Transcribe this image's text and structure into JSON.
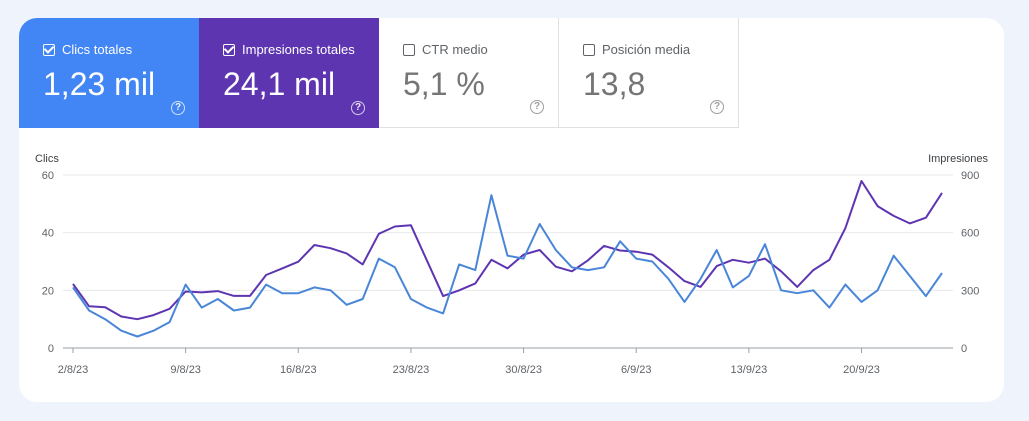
{
  "metrics": [
    {
      "label": "Clics totales",
      "value": "1,23 mil",
      "checked": true,
      "color": "#4285f4"
    },
    {
      "label": "Impresiones totales",
      "value": "24,1 mil",
      "checked": true,
      "color": "#5e35b1"
    },
    {
      "label": "CTR medio",
      "value": "5,1 %",
      "checked": false
    },
    {
      "label": "Posición media",
      "value": "13,8",
      "checked": false
    }
  ],
  "chart_data": {
    "type": "line",
    "grid": true,
    "y_left": {
      "label": "Clics",
      "range": [
        0,
        60
      ],
      "ticks": [
        "60",
        "40",
        "20",
        "0"
      ]
    },
    "y_right": {
      "label": "Impresiones",
      "range": [
        0,
        900
      ],
      "ticks": [
        "900",
        "600",
        "300",
        "0"
      ]
    },
    "x_tick_labels": [
      "2/8/23",
      "9/8/23",
      "16/8/23",
      "23/8/23",
      "30/8/23",
      "6/9/23",
      "13/9/23",
      "20/9/23"
    ],
    "x_tick_day_index": [
      0,
      7,
      14,
      21,
      28,
      35,
      42,
      49
    ],
    "series": [
      {
        "name": "Impresiones",
        "axis": "right",
        "color": "#5e35b1",
        "values": [
          333,
          217,
          212,
          164,
          150,
          171,
          204,
          294,
          289,
          296,
          271,
          271,
          380,
          414,
          449,
          536,
          519,
          492,
          435,
          594,
          632,
          639,
          454,
          270,
          300,
          336,
          459,
          414,
          486,
          510,
          423,
          399,
          456,
          531,
          507,
          501,
          486,
          420,
          348,
          318,
          426,
          459,
          444,
          465,
          399,
          318,
          405,
          459,
          624,
          869,
          738,
          687,
          648,
          678,
          807
        ]
      },
      {
        "name": "Clics",
        "axis": "left",
        "color": "#4a86d8",
        "values": [
          21,
          13,
          10,
          6,
          4,
          6,
          9,
          22,
          14,
          17,
          13,
          14,
          22,
          19,
          19,
          21,
          20,
          15,
          17,
          31,
          28,
          17,
          14,
          12,
          29,
          27,
          53,
          32,
          31,
          43,
          34,
          28,
          27,
          28,
          37,
          31,
          30,
          24,
          16,
          24,
          34,
          21,
          25,
          36,
          20,
          19,
          20,
          14,
          22,
          16,
          20,
          32,
          25,
          18,
          26
        ]
      }
    ]
  }
}
